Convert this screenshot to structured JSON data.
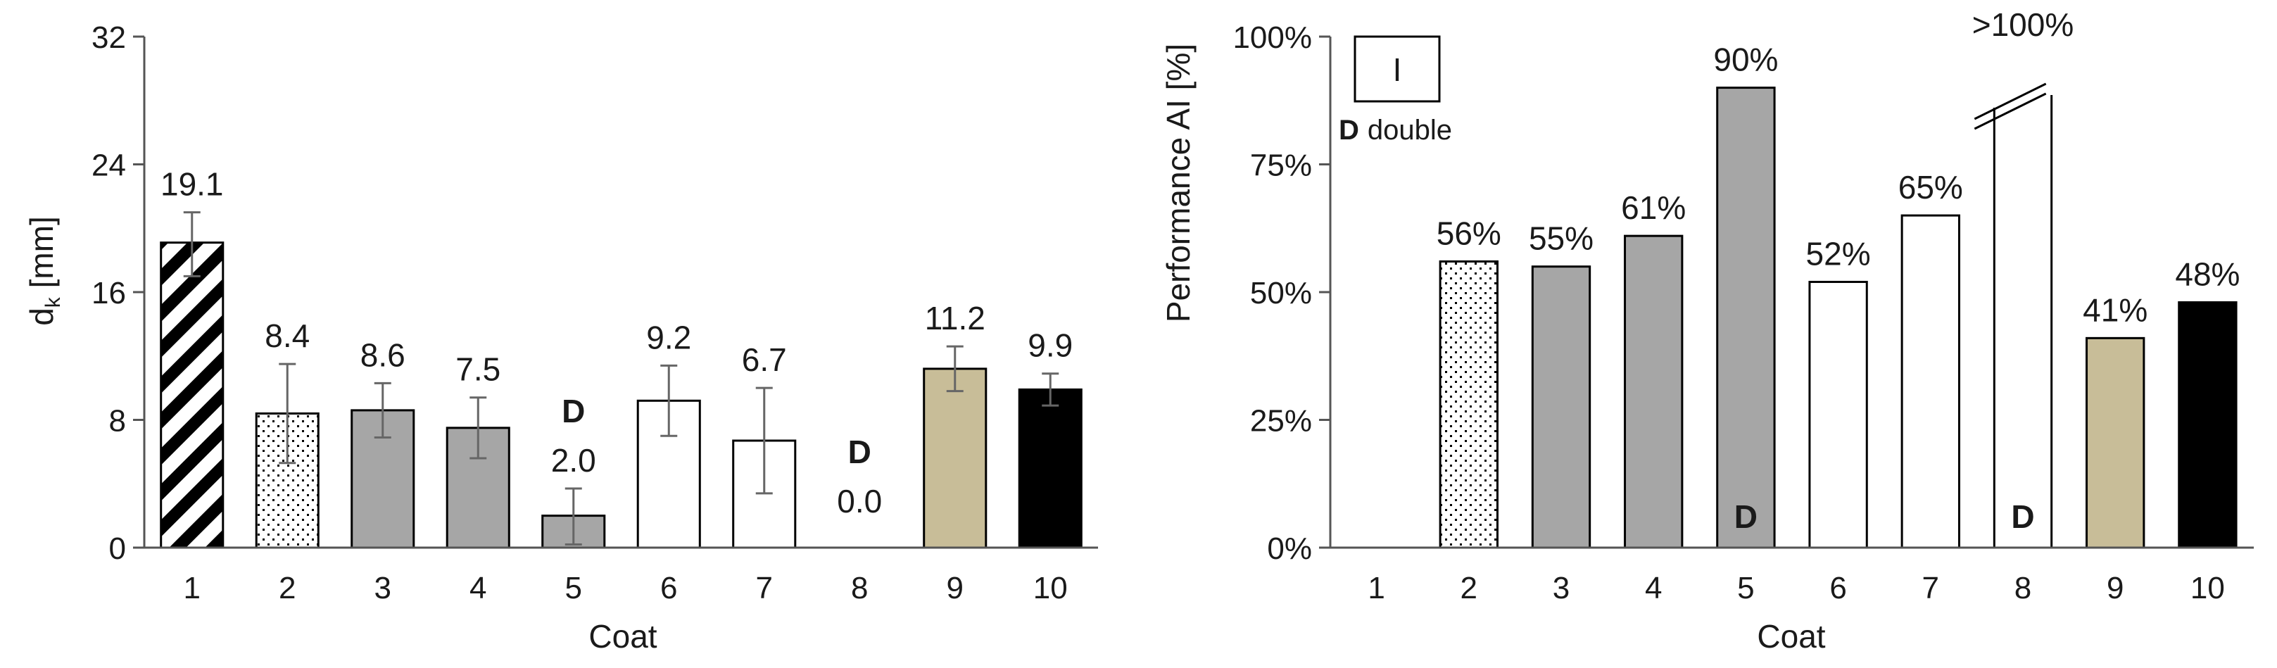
{
  "chart_data": [
    {
      "type": "bar",
      "xlabel": "Coat",
      "ylabel_main": "d",
      "ylabel_sub": "k",
      "ylabel_unit": " [mm]",
      "ylim": [
        0,
        32
      ],
      "yticks": [
        "0",
        "8",
        "16",
        "24",
        "32"
      ],
      "ytick_values": [
        0,
        8,
        16,
        24,
        32
      ],
      "categories": [
        "1",
        "2",
        "3",
        "4",
        "5",
        "6",
        "7",
        "8",
        "9",
        "10"
      ],
      "values": [
        19.1,
        8.4,
        8.6,
        7.5,
        2.0,
        9.2,
        6.7,
        0.0,
        11.2,
        9.9
      ],
      "value_labels": [
        "19.1",
        "8.4",
        "8.6",
        "7.5",
        "2.0",
        "9.2",
        "6.7",
        "0.0",
        "11.2",
        "9.9"
      ],
      "error_low": [
        17.0,
        5.3,
        6.9,
        5.6,
        0.2,
        7.0,
        3.4,
        null,
        9.8,
        8.9
      ],
      "error_high": [
        21.0,
        11.5,
        10.3,
        9.4,
        3.7,
        11.4,
        10.0,
        null,
        12.6,
        10.9
      ],
      "patterns": [
        "diagonal",
        "dots",
        "solid",
        "solid",
        "solid",
        "solid",
        "solid",
        "solid",
        "solid",
        "solid"
      ],
      "colors": [
        "#ffffff",
        "#ffffff",
        "#a6a6a6",
        "#a6a6a6",
        "#a6a6a6",
        "#ffffff",
        "#ffffff",
        "#ffffff",
        "#c8bd98",
        "#000000"
      ],
      "markers": [
        {
          "category_index": 4,
          "text": "D",
          "position": "above-label"
        },
        {
          "category_index": 7,
          "text": "D",
          "position": "above-label"
        }
      ],
      "grid": false
    },
    {
      "type": "bar",
      "xlabel": "Coat",
      "ylabel": "Performance AI [%]",
      "ylim": [
        0,
        100
      ],
      "yticks": [
        "0%",
        "25%",
        "50%",
        "75%",
        "100%"
      ],
      "ytick_values": [
        0,
        25,
        50,
        75,
        100
      ],
      "categories": [
        "1",
        "2",
        "3",
        "4",
        "5",
        "6",
        "7",
        "8",
        "9",
        "10"
      ],
      "values": [
        null,
        56,
        55,
        61,
        90,
        52,
        65,
        100,
        41,
        48
      ],
      "value_labels": [
        "",
        "56%",
        "55%",
        "61%",
        "90%",
        "52%",
        "65%",
        ">100%",
        "41%",
        "48%"
      ],
      "patterns": [
        "none",
        "dots",
        "solid",
        "solid",
        "solid",
        "solid",
        "solid",
        "broken",
        "solid",
        "solid"
      ],
      "colors": [
        "#ffffff",
        "#ffffff",
        "#a6a6a6",
        "#a6a6a6",
        "#a6a6a6",
        "#ffffff",
        "#ffffff",
        "#ffffff",
        "#c8bd98",
        "#000000"
      ],
      "markers": [
        {
          "category_index": 4,
          "text": "D",
          "position": "inside-bottom"
        },
        {
          "category_index": 7,
          "text": "D",
          "position": "inside-bottom"
        }
      ],
      "legend": {
        "box_text": "I",
        "marker_text": "D",
        "marker_desc": "double",
        "position": "top-left"
      },
      "grid": false
    }
  ]
}
